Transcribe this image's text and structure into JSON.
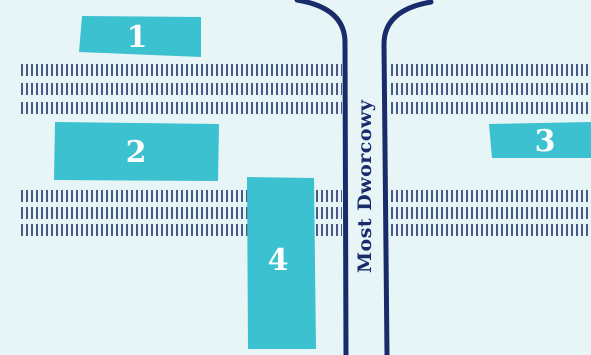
{
  "colors": {
    "background": "#e8f5f6",
    "platform": "#3cc1d0",
    "track": "#4a5a86",
    "bridge": "#1a2b6b",
    "label": "#ffffff"
  },
  "bridge": {
    "name": "Most Dworcowy"
  },
  "platforms": [
    {
      "label": "1"
    },
    {
      "label": "2"
    },
    {
      "label": "3"
    },
    {
      "label": "4"
    }
  ]
}
